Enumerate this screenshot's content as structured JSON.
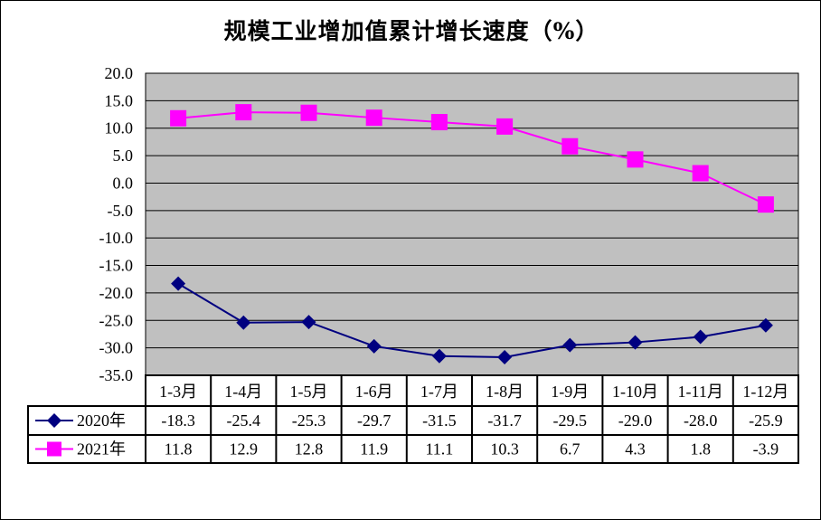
{
  "chart_data": {
    "type": "line",
    "title": "规模工业增加值累计增长速度（%）",
    "categories": [
      "1-3月",
      "1-4月",
      "1-5月",
      "1-6月",
      "1-7月",
      "1-8月",
      "1-9月",
      "1-10月",
      "1-11月",
      "1-12月"
    ],
    "series": [
      {
        "name": "2020年",
        "values": [
          -18.3,
          -25.4,
          -25.3,
          -29.7,
          -31.5,
          -31.7,
          -29.5,
          -29.0,
          -28.0,
          -25.9
        ],
        "color": "#000080",
        "marker": "diamond"
      },
      {
        "name": "2021年",
        "values": [
          11.8,
          12.9,
          12.8,
          11.9,
          11.1,
          10.3,
          6.7,
          4.3,
          1.8,
          -3.9
        ],
        "color": "#FF00FF",
        "marker": "square"
      }
    ],
    "ylim": [
      -35,
      20
    ],
    "ytick_step": 5,
    "yticks": [
      "20.0",
      "15.0",
      "10.0",
      "5.0",
      "0.0",
      "-5.0",
      "-10.0",
      "-15.0",
      "-20.0",
      "-25.0",
      "-30.0",
      "-35.0"
    ],
    "grid": true,
    "plot_background": "#C0C0C0",
    "legend": "data-table"
  }
}
